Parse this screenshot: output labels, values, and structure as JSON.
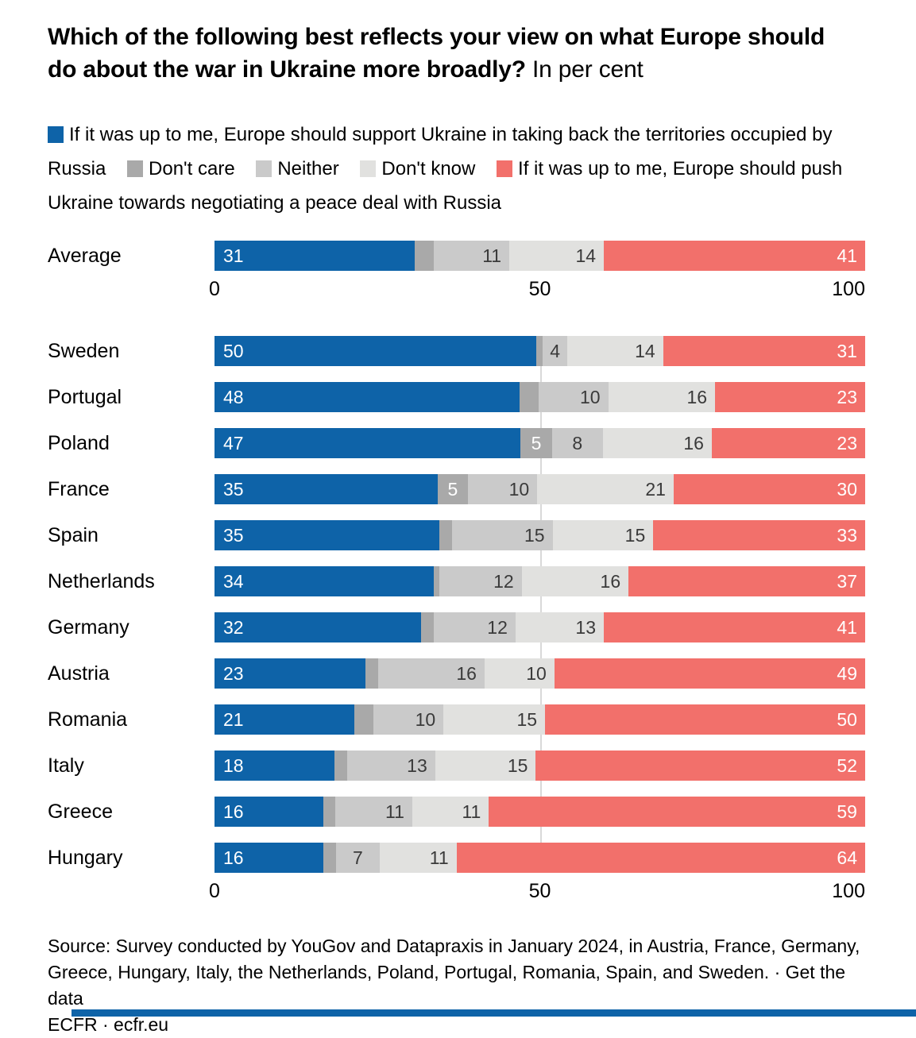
{
  "title": {
    "question": "Which of the following best reflects your view on what Europe should do about the war in Ukraine more broadly?",
    "suffix": " In per cent"
  },
  "colors": {
    "support": "#0e63a8",
    "dont_care": "#a9a9a9",
    "neither": "#cacaca",
    "dont_know": "#e1e1df",
    "peace": "#f2706b",
    "label_light": "#ffffff",
    "label_dark": "#3a3a3a",
    "gridline": "#d9d9d9"
  },
  "legend": {
    "items": [
      {
        "key": "support",
        "label": "If it was up to me, Europe should support Ukraine in taking back the territories occupied by Russia"
      },
      {
        "key": "dont_care",
        "label": "Don't care"
      },
      {
        "key": "neither",
        "label": "Neither"
      },
      {
        "key": "dont_know",
        "label": "Don't know"
      },
      {
        "key": "peace",
        "label": "If it was up to me, Europe should push Ukraine towards negotiating a peace deal with Russia"
      }
    ]
  },
  "axis": {
    "ticks": [
      "0",
      "50",
      "100"
    ],
    "min": 0,
    "max": 100
  },
  "chart_data": {
    "type": "bar",
    "orientation": "horizontal-stacked",
    "unit": "per cent",
    "title": "Which of the following best reflects your view on what Europe should do about the war in Ukraine more broadly?",
    "xlim": [
      0,
      100
    ],
    "grid": "vertical line at 50",
    "legend_position": "top",
    "label_min_value_shown": 4,
    "categories": [
      "Average",
      "Sweden",
      "Portugal",
      "Poland",
      "France",
      "Spain",
      "Netherlands",
      "Germany",
      "Austria",
      "Romania",
      "Italy",
      "Greece",
      "Hungary"
    ],
    "series": [
      {
        "key": "support",
        "name": "If it was up to me, Europe should support Ukraine in taking back the territories occupied by Russia",
        "values": [
          31,
          50,
          48,
          47,
          35,
          35,
          34,
          32,
          23,
          21,
          18,
          16,
          16
        ]
      },
      {
        "key": "dont_care",
        "name": "Don't care",
        "values": [
          3,
          1,
          3,
          5,
          5,
          2,
          1,
          2,
          2,
          3,
          2,
          2,
          2
        ]
      },
      {
        "key": "neither",
        "name": "Neither",
        "values": [
          11,
          4,
          10,
          8,
          10,
          15,
          12,
          12,
          16,
          10,
          13,
          11,
          7
        ]
      },
      {
        "key": "dont_know",
        "name": "Don't know",
        "values": [
          14,
          14,
          16,
          16,
          21,
          15,
          16,
          13,
          10,
          15,
          15,
          11,
          11
        ]
      },
      {
        "key": "peace",
        "name": "If it was up to me, Europe should push Ukraine towards negotiating a peace deal with Russia",
        "values": [
          41,
          31,
          23,
          23,
          30,
          33,
          37,
          41,
          49,
          50,
          52,
          59,
          64
        ]
      }
    ]
  },
  "source": {
    "prefix": "Source: Survey conducted by YouGov and Datapraxis in January 2024, in Austria, France, Germany, Greece, Hungary, Italy, the Netherlands, Poland, Portugal, Romania, Spain, and Sweden. · ",
    "get_data_label": "Get the data",
    "footer": "ECFR · ecfr.eu"
  }
}
